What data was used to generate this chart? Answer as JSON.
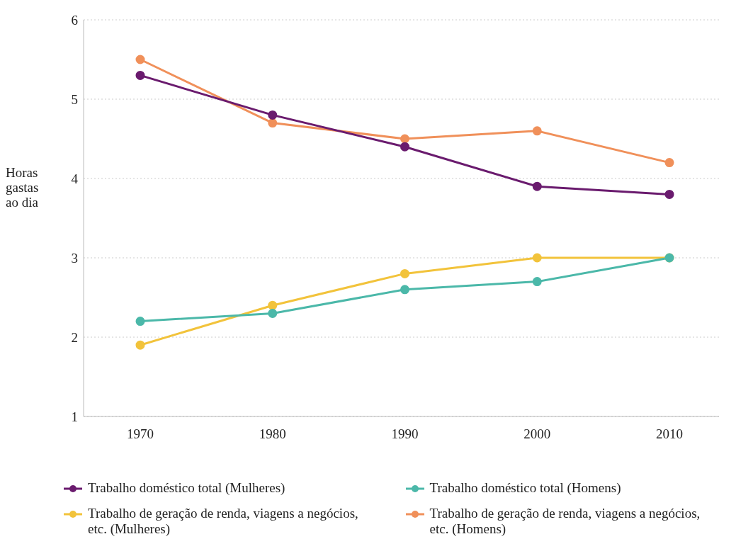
{
  "chart_data": {
    "type": "line",
    "ylabel": "Horas gastas ao dia",
    "categories": [
      "1970",
      "1980",
      "1990",
      "2000",
      "2010"
    ],
    "series": [
      {
        "name": "Trabalho doméstico total (Mulheres)",
        "color": "#6a1b6e",
        "values": [
          5.3,
          4.8,
          4.4,
          3.9,
          3.8
        ]
      },
      {
        "name": "Trabalho doméstico total (Homens)",
        "color": "#4bb8a9",
        "values": [
          2.2,
          2.3,
          2.6,
          2.7,
          3.0
        ]
      },
      {
        "name": "Trabalho de geração de renda, viagens a negócios, etc. (Mulheres)",
        "color": "#f2c33b",
        "values": [
          1.9,
          2.4,
          2.8,
          3.0,
          3.0
        ]
      },
      {
        "name": "Trabalho de geração de renda, viagens a negócios, etc. (Homens)",
        "color": "#f0905a",
        "values": [
          5.5,
          4.7,
          4.5,
          4.6,
          4.2
        ]
      }
    ],
    "ylim": [
      1,
      6
    ],
    "yticks": [
      1,
      2,
      3,
      4,
      5,
      6
    ],
    "grid": "y",
    "legend": "bottom",
    "marker": "circle",
    "line_style": "solid"
  }
}
